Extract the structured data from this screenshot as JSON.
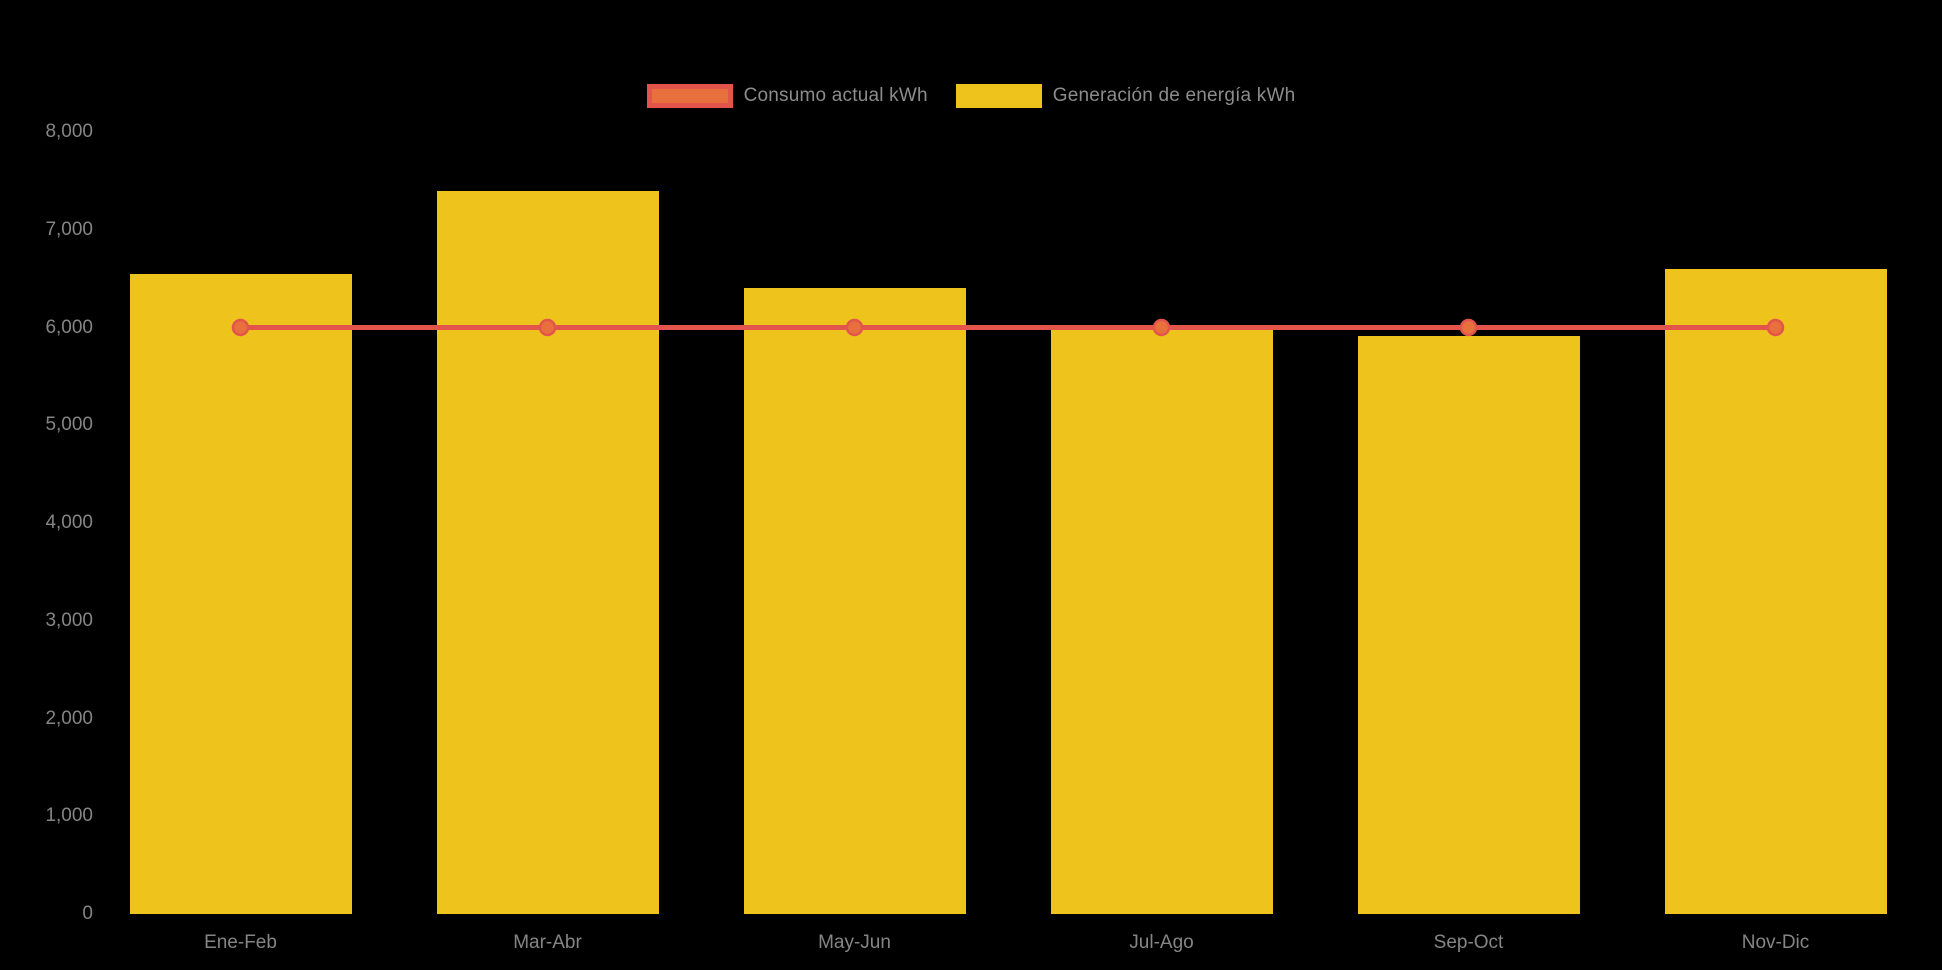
{
  "chart_data": {
    "type": "bar",
    "subtype": "bar-with-constant-line-overlay",
    "title": "",
    "categories": [
      "Ene-Feb",
      "Mar-Abr",
      "May-Jun",
      "Jul-Ago",
      "Sep-Oct",
      "Nov-Dic"
    ],
    "series": [
      {
        "name": "Consumo actual kWh",
        "type": "line",
        "color": "#e2544c",
        "marker_color": "#e8703c",
        "values": [
          6000,
          6000,
          6000,
          6000,
          6000,
          6000
        ]
      },
      {
        "name": "Generación de energía kWh",
        "type": "bar",
        "color": "#eec31c",
        "values": [
          6550,
          7400,
          6400,
          5990,
          5910,
          6600
        ]
      }
    ],
    "xlabel": "",
    "ylabel": "",
    "ylim": [
      0,
      8000
    ],
    "ytick_step": 1000,
    "ytick_labels": [
      "0",
      "1,000",
      "2,000",
      "3,000",
      "4,000",
      "5,000",
      "6,000",
      "7,000",
      "8,000"
    ],
    "grid": false,
    "legend_position": "top-center",
    "background_color": "#000000",
    "text_color": "#858585"
  }
}
